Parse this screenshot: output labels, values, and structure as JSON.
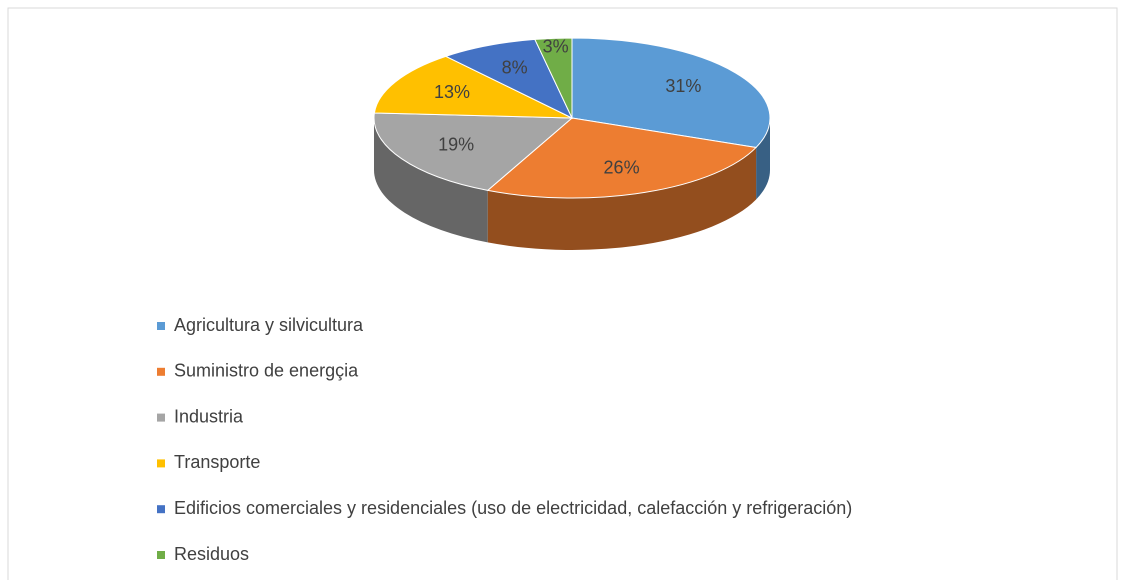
{
  "chart_data": {
    "type": "pie3d",
    "categories": [
      "Agricultura y silvicultura",
      "Suministro de energçia",
      "Industria",
      "Transporte",
      "Edificios comerciales y residenciales (uso de electricidad, calefacción y refrigeración)",
      "Residuos"
    ],
    "values": [
      31,
      26,
      19,
      13,
      8,
      3
    ],
    "value_labels": [
      "31%",
      "26%",
      "19%",
      "13%",
      "8%",
      "3%"
    ],
    "colors": [
      "#5b9bd5",
      "#ed7d31",
      "#a5a5a5",
      "#ffc000",
      "#4472c4",
      "#70ad47"
    ],
    "legend": "bottom"
  }
}
